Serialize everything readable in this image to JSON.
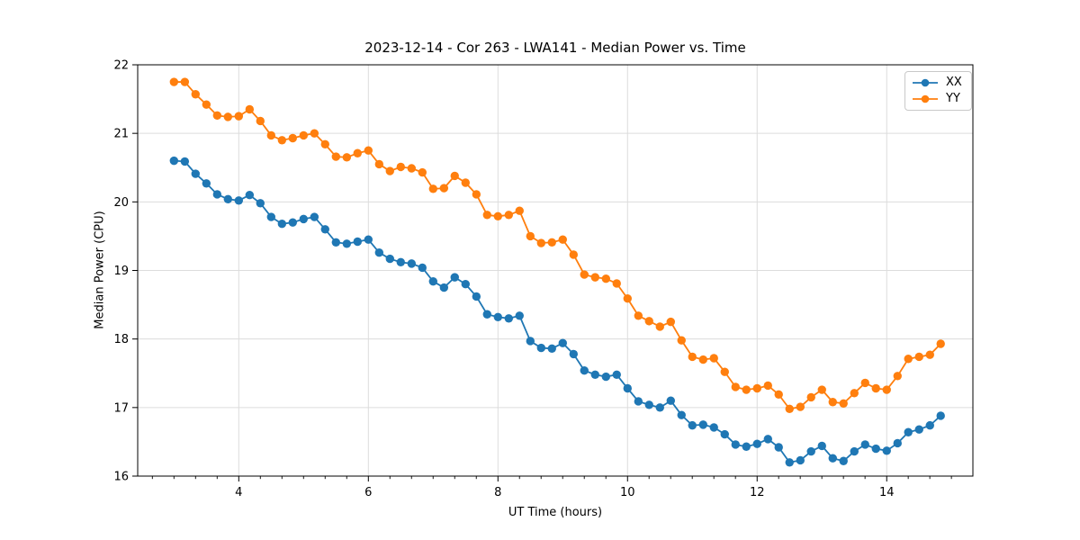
{
  "chart_data": {
    "type": "line",
    "title": "2023-12-14 - Cor 263 - LWA141 - Median Power vs. Time",
    "xlabel": "UT Time (hours)",
    "ylabel": "Median Power (CPU)",
    "xlim": [
      2.44,
      15.33
    ],
    "ylim": [
      16,
      22
    ],
    "xticks": [
      4,
      6,
      8,
      10,
      12,
      14
    ],
    "yticks": [
      16,
      17,
      18,
      19,
      20,
      21,
      22
    ],
    "minor_xtick_step": 0.3333,
    "grid": true,
    "grid_color": "#dcdcdc",
    "legend": {
      "loc": "upper right",
      "entries": [
        "XX",
        "YY"
      ]
    },
    "x": [
      3.0,
      3.167,
      3.333,
      3.5,
      3.667,
      3.833,
      4.0,
      4.167,
      4.333,
      4.5,
      4.667,
      4.833,
      5.0,
      5.167,
      5.333,
      5.5,
      5.667,
      5.833,
      6.0,
      6.167,
      6.333,
      6.5,
      6.667,
      6.833,
      7.0,
      7.167,
      7.333,
      7.5,
      7.667,
      7.833,
      8.0,
      8.167,
      8.333,
      8.5,
      8.667,
      8.833,
      9.0,
      9.167,
      9.333,
      9.5,
      9.667,
      9.833,
      10.0,
      10.167,
      10.333,
      10.5,
      10.667,
      10.833,
      11.0,
      11.167,
      11.333,
      11.5,
      11.667,
      11.833,
      12.0,
      12.167,
      12.333,
      12.5,
      12.667,
      12.833,
      13.0,
      13.167,
      13.333,
      13.5,
      13.667,
      13.833,
      14.0,
      14.167,
      14.333,
      14.5,
      14.667,
      14.833
    ],
    "series": [
      {
        "name": "XX",
        "color": "#1f77b4",
        "values": [
          20.6,
          20.59,
          20.41,
          20.27,
          20.11,
          20.04,
          20.02,
          20.1,
          19.98,
          19.78,
          19.68,
          19.7,
          19.75,
          19.78,
          19.6,
          19.41,
          19.39,
          19.42,
          19.45,
          19.26,
          19.17,
          19.12,
          19.1,
          19.04,
          18.84,
          18.75,
          18.9,
          18.8,
          18.62,
          18.36,
          18.32,
          18.3,
          18.34,
          17.97,
          17.87,
          17.86,
          17.94,
          17.78,
          17.54,
          17.48,
          17.45,
          17.48,
          17.28,
          17.09,
          17.04,
          17.0,
          17.1,
          16.89,
          16.74,
          16.75,
          16.71,
          16.61,
          16.46,
          16.43,
          16.47,
          16.54,
          16.42,
          16.2,
          16.23,
          16.36,
          16.44,
          16.26,
          16.22,
          16.36,
          16.46,
          16.4,
          16.37,
          16.48,
          16.64,
          16.68,
          16.74,
          16.88
        ]
      },
      {
        "name": "YY",
        "color": "#ff7f0e",
        "values": [
          21.75,
          21.75,
          21.57,
          21.42,
          21.26,
          21.24,
          21.25,
          21.35,
          21.18,
          20.97,
          20.9,
          20.93,
          20.97,
          21.0,
          20.84,
          20.66,
          20.65,
          20.71,
          20.75,
          20.55,
          20.45,
          20.51,
          20.49,
          20.43,
          20.19,
          20.2,
          20.38,
          20.28,
          20.11,
          19.81,
          19.79,
          19.81,
          19.87,
          19.5,
          19.4,
          19.41,
          19.45,
          19.23,
          18.94,
          18.9,
          18.88,
          18.81,
          18.59,
          18.34,
          18.26,
          18.18,
          18.25,
          17.98,
          17.74,
          17.7,
          17.72,
          17.52,
          17.3,
          17.26,
          17.28,
          17.32,
          17.19,
          16.98,
          17.01,
          17.15,
          17.26,
          17.08,
          17.06,
          17.21,
          17.36,
          17.28,
          17.26,
          17.46,
          17.71,
          17.74,
          17.77,
          17.93
        ]
      }
    ]
  }
}
